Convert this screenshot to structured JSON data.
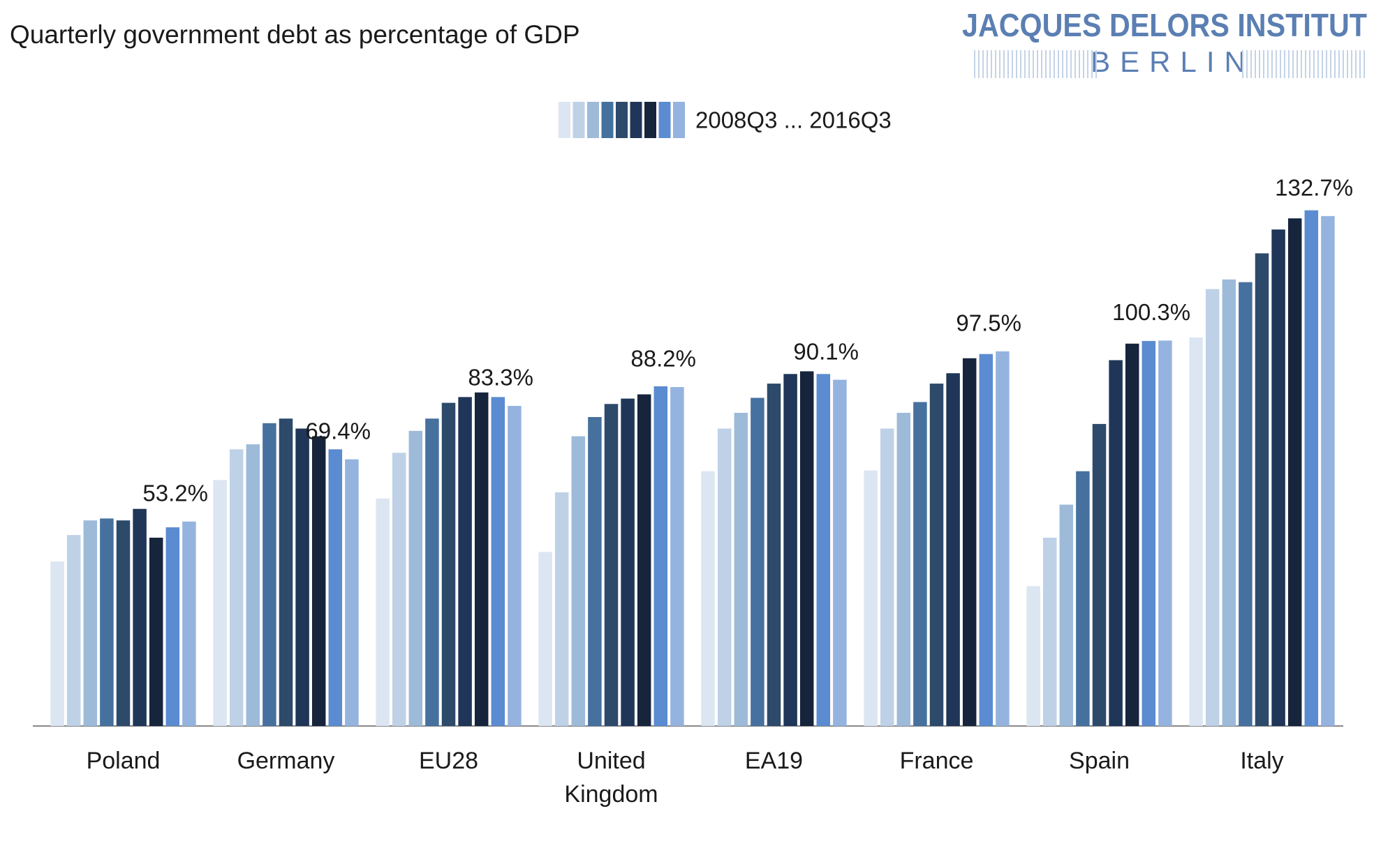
{
  "chart_data": {
    "type": "bar",
    "title": "Quarterly government debt as percentage of GDP",
    "logo": {
      "name": "JACQUES DELORS INSTITUT",
      "city": "BERLIN"
    },
    "legend_label": "2008Q3 ... 2016Q3",
    "categories": [
      "Poland",
      "Germany",
      "EU28",
      "United Kingdom",
      "EA19",
      "France",
      "Spain",
      "Italy"
    ],
    "ylim": [
      0,
      140
    ],
    "series": [
      {
        "color": "#dce6f2",
        "values": [
          42.8,
          64.0,
          59.2,
          45.3,
          66.3,
          66.5,
          36.4,
          101.1
        ]
      },
      {
        "color": "#bed1e7",
        "values": [
          49.7,
          72.0,
          71.1,
          60.8,
          77.4,
          77.4,
          49.0,
          113.7
        ]
      },
      {
        "color": "#9dbad9",
        "values": [
          53.5,
          73.3,
          76.8,
          75.4,
          81.5,
          81.5,
          57.6,
          116.2
        ]
      },
      {
        "color": "#46709e",
        "values": [
          54.0,
          78.8,
          80.0,
          80.4,
          85.4,
          84.3,
          66.3,
          115.5
        ]
      },
      {
        "color": "#2d4a6b",
        "values": [
          53.5,
          80.0,
          84.1,
          83.8,
          89.1,
          89.1,
          78.6,
          123.0
        ]
      },
      {
        "color": "#1f3658",
        "values": [
          56.5,
          77.4,
          85.6,
          85.2,
          91.6,
          91.8,
          95.2,
          129.2
        ]
      },
      {
        "color": "#16243c",
        "values": [
          49.0,
          75.4,
          86.8,
          86.3,
          92.3,
          95.7,
          99.5,
          132.1
        ]
      },
      {
        "color": "#5b8bd0",
        "values": [
          51.7,
          72.0,
          85.6,
          88.4,
          91.6,
          96.8,
          100.2,
          134.2
        ]
      },
      {
        "color": "#95b3df",
        "values": [
          53.2,
          69.4,
          83.3,
          88.2,
          90.1,
          97.5,
          100.3,
          132.7
        ],
        "value_labels": [
          "53.2%",
          "69.4%",
          "83.3%",
          "88.2%",
          "90.1%",
          "97.5%",
          "100.3%",
          "132.7%"
        ]
      }
    ]
  }
}
